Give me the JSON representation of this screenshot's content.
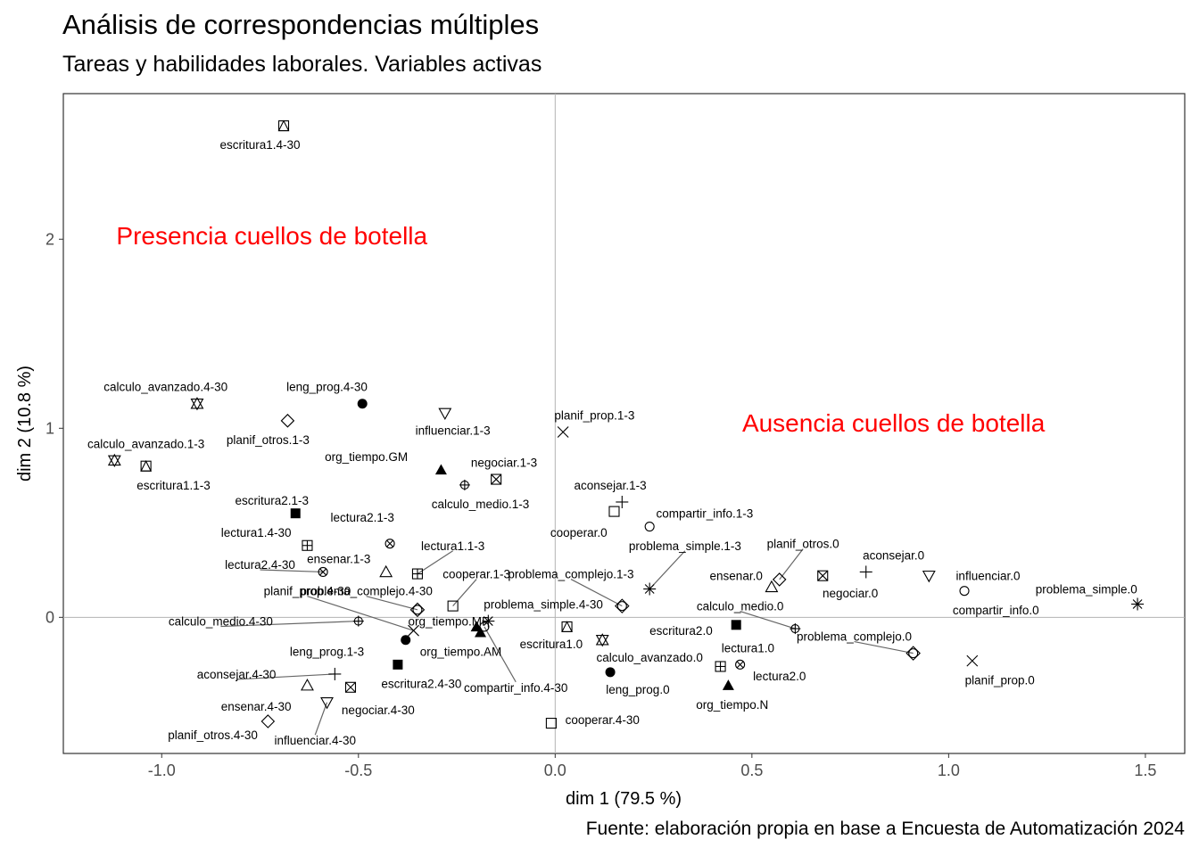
{
  "title": "Análisis de correspondencias múltiples",
  "subtitle": "Tareas y habilidades laborales. Variables activas",
  "caption": "Fuente: elaboración propia en base a Encuesta de Automatización 2024",
  "colors": {
    "annotation": "#ff0000",
    "refline": "#b3b3b3",
    "leader": "#666666",
    "panel_border": "#333333"
  },
  "chart_data": {
    "type": "scatter",
    "title": "Análisis de correspondencias múltiples",
    "subtitle": "Tareas y habilidades laborales. Variables activas",
    "xlabel": "dim 1 (79.5 %)",
    "ylabel": "dim 2 (10.8 %)",
    "xlim": [
      -1.25,
      1.6
    ],
    "ylim": [
      -0.72,
      2.77
    ],
    "xticks": [
      {
        "v": -1.0,
        "label": "-1.0"
      },
      {
        "v": -0.5,
        "label": "-0.5"
      },
      {
        "v": 0.0,
        "label": "0.0"
      },
      {
        "v": 0.5,
        "label": "0.5"
      },
      {
        "v": 1.0,
        "label": "1.0"
      },
      {
        "v": 1.5,
        "label": "1.5"
      }
    ],
    "yticks": [
      {
        "v": 0,
        "label": "0"
      },
      {
        "v": 1,
        "label": "1"
      },
      {
        "v": 2,
        "label": "2"
      }
    ],
    "grid": false,
    "reference_lines": {
      "x": 0,
      "y": 0
    },
    "annotations": [
      {
        "text": "Presencia cuellos de botella",
        "x": -0.72,
        "y": 2.02
      },
      {
        "text": "Ausencia cuellos de botella",
        "x": 0.86,
        "y": 1.03
      }
    ],
    "points": [
      {
        "label": "escritura1.4-30",
        "x": -0.69,
        "y": 2.6,
        "shape": "square-triangle",
        "lx": -0.75,
        "ly": 2.5
      },
      {
        "label": "calculo_avanzado.4-30",
        "x": -0.91,
        "y": 1.13,
        "shape": "star-david",
        "lx": -0.99,
        "ly": 1.22
      },
      {
        "label": "calculo_avanzado.1-3",
        "x": -1.12,
        "y": 0.83,
        "shape": "star-david",
        "lx": -1.04,
        "ly": 0.92
      },
      {
        "label": "escritura1.1-3",
        "x": -1.04,
        "y": 0.8,
        "shape": "square-triangle",
        "lx": -0.97,
        "ly": 0.7
      },
      {
        "label": "planif_otros.1-3",
        "x": -0.68,
        "y": 1.04,
        "shape": "diamond",
        "lx": -0.73,
        "ly": 0.94
      },
      {
        "label": "leng_prog.4-30",
        "x": -0.49,
        "y": 1.13,
        "shape": "filled-circle",
        "lx": -0.58,
        "ly": 1.22
      },
      {
        "label": "influenciar.1-3",
        "x": -0.28,
        "y": 1.08,
        "shape": "triangle-down",
        "lx": -0.26,
        "ly": 0.99
      },
      {
        "label": "planif_prop.1-3",
        "x": 0.02,
        "y": 0.98,
        "shape": "cross-x",
        "lx": 0.1,
        "ly": 1.07
      },
      {
        "label": "org_tiempo.GM",
        "x": -0.29,
        "y": 0.78,
        "shape": "filled-triangle",
        "lx": -0.48,
        "ly": 0.85
      },
      {
        "label": "negociar.1-3",
        "x": -0.15,
        "y": 0.73,
        "shape": "square-x",
        "lx": -0.13,
        "ly": 0.82
      },
      {
        "label": "calculo_medio.1-3",
        "x": -0.23,
        "y": 0.7,
        "shape": "circle-plus",
        "lx": -0.19,
        "ly": 0.6
      },
      {
        "label": "aconsejar.1-3",
        "x": 0.17,
        "y": 0.61,
        "shape": "plus",
        "lx": 0.14,
        "ly": 0.7
      },
      {
        "label": "cooperar.0",
        "x": 0.15,
        "y": 0.56,
        "shape": "square",
        "lx": 0.06,
        "ly": 0.45
      },
      {
        "label": "compartir_info.1-3",
        "x": 0.24,
        "y": 0.48,
        "shape": "circle",
        "lx": 0.38,
        "ly": 0.55
      },
      {
        "label": "escritura2.1-3",
        "x": -0.66,
        "y": 0.55,
        "shape": "filled-square",
        "lx": -0.72,
        "ly": 0.62
      },
      {
        "label": "lectura2.1-3",
        "x": -0.42,
        "y": 0.39,
        "shape": "circle-x",
        "lx": -0.49,
        "ly": 0.53
      },
      {
        "label": "lectura1.4-30",
        "x": -0.63,
        "y": 0.38,
        "shape": "square-plus",
        "lx": -0.76,
        "ly": 0.45
      },
      {
        "label": "lectura1.1-3",
        "x": -0.35,
        "y": 0.23,
        "shape": "square-plus",
        "lx": -0.26,
        "ly": 0.38,
        "leader": true
      },
      {
        "label": "lectura2.4-30",
        "x": -0.59,
        "y": 0.24,
        "shape": "circle-x",
        "lx": -0.75,
        "ly": 0.28,
        "leader": true
      },
      {
        "label": "ensenar.1-3",
        "x": -0.43,
        "y": 0.24,
        "shape": "triangle",
        "lx": -0.55,
        "ly": 0.31
      },
      {
        "label": "cooperar.1-3",
        "x": -0.26,
        "y": 0.06,
        "shape": "square",
        "lx": -0.2,
        "ly": 0.23,
        "leader": true
      },
      {
        "label": "problema_complejo.1-3",
        "x": 0.17,
        "y": 0.06,
        "shape": "circle-diamond",
        "lx": 0.04,
        "ly": 0.23,
        "leader": true
      },
      {
        "label": "problema_simple.1-3",
        "x": 0.24,
        "y": 0.15,
        "shape": "asterisk",
        "lx": 0.33,
        "ly": 0.38,
        "leader": true
      },
      {
        "label": "planif_prop.4-30",
        "x": -0.36,
        "y": -0.07,
        "shape": "cross-x",
        "lx": -0.63,
        "ly": 0.14,
        "leader": true
      },
      {
        "label": "problema_complejo.4-30",
        "x": -0.35,
        "y": 0.04,
        "shape": "circle-diamond",
        "lx": -0.48,
        "ly": 0.14,
        "leader": true
      },
      {
        "label": "problema_simple.4-30",
        "x": -0.17,
        "y": -0.02,
        "shape": "asterisk",
        "lx": -0.03,
        "ly": 0.07
      },
      {
        "label": "org_tiempo.MP",
        "x": -0.2,
        "y": -0.05,
        "shape": "filled-triangle",
        "lx": -0.27,
        "ly": -0.02
      },
      {
        "label": "calculo_medio.4-30",
        "x": -0.5,
        "y": -0.02,
        "shape": "circle-plus",
        "lx": -0.85,
        "ly": -0.02,
        "leader": true
      },
      {
        "label": "org_tiempo.AM",
        "x": -0.19,
        "y": -0.08,
        "shape": "filled-triangle",
        "lx": -0.24,
        "ly": -0.18
      },
      {
        "label": "leng_prog.1-3",
        "x": -0.38,
        "y": -0.12,
        "shape": "filled-circle",
        "lx": -0.58,
        "ly": -0.18
      },
      {
        "label": "escritura2.4-30",
        "x": -0.4,
        "y": -0.25,
        "shape": "filled-square",
        "lx": -0.34,
        "ly": -0.35
      },
      {
        "label": "compartir_info.4-30",
        "x": -0.18,
        "y": -0.05,
        "shape": "circle",
        "lx": -0.1,
        "ly": -0.37,
        "leader": true
      },
      {
        "label": "aconsejar.4-30",
        "x": -0.56,
        "y": -0.3,
        "shape": "plus",
        "lx": -0.81,
        "ly": -0.3,
        "leader": true
      },
      {
        "label": "ensenar.4-30",
        "x": -0.63,
        "y": -0.36,
        "shape": "triangle",
        "lx": -0.76,
        "ly": -0.47
      },
      {
        "label": "negociar.4-30",
        "x": -0.52,
        "y": -0.37,
        "shape": "square-x",
        "lx": -0.45,
        "ly": -0.49
      },
      {
        "label": "influenciar.4-30",
        "x": -0.58,
        "y": -0.45,
        "shape": "triangle-down",
        "lx": -0.61,
        "ly": -0.65,
        "leader": true
      },
      {
        "label": "planif_otros.4-30",
        "x": -0.73,
        "y": -0.55,
        "shape": "diamond",
        "lx": -0.87,
        "ly": -0.62
      },
      {
        "label": "escritura1.0",
        "x": 0.03,
        "y": -0.05,
        "shape": "square-triangle",
        "lx": -0.01,
        "ly": -0.14
      },
      {
        "label": "calculo_avanzado.0",
        "x": 0.12,
        "y": -0.12,
        "shape": "star-david",
        "lx": 0.24,
        "ly": -0.21
      },
      {
        "label": "cooperar.4-30",
        "x": -0.01,
        "y": -0.56,
        "shape": "square",
        "lx": 0.12,
        "ly": -0.54
      },
      {
        "label": "leng_prog.0",
        "x": 0.14,
        "y": -0.29,
        "shape": "filled-circle",
        "lx": 0.21,
        "ly": -0.38
      },
      {
        "label": "escritura2.0",
        "x": 0.46,
        "y": -0.04,
        "shape": "filled-square",
        "lx": 0.32,
        "ly": -0.07
      },
      {
        "label": "calculo_medio.0",
        "x": 0.61,
        "y": -0.06,
        "shape": "circle-plus",
        "lx": 0.47,
        "ly": 0.06,
        "leader": true
      },
      {
        "label": "lectura1.0",
        "x": 0.42,
        "y": -0.26,
        "shape": "square-plus",
        "lx": 0.49,
        "ly": -0.16
      },
      {
        "label": "lectura2.0",
        "x": 0.47,
        "y": -0.25,
        "shape": "circle-x",
        "lx": 0.57,
        "ly": -0.31
      },
      {
        "label": "org_tiempo.N",
        "x": 0.44,
        "y": -0.36,
        "shape": "filled-triangle",
        "lx": 0.45,
        "ly": -0.46
      },
      {
        "label": "ensenar.0",
        "x": 0.55,
        "y": 0.16,
        "shape": "triangle",
        "lx": 0.46,
        "ly": 0.22
      },
      {
        "label": "planif_otros.0",
        "x": 0.57,
        "y": 0.2,
        "shape": "diamond",
        "lx": 0.63,
        "ly": 0.39,
        "leader": true
      },
      {
        "label": "negociar.0",
        "x": 0.68,
        "y": 0.22,
        "shape": "square-x",
        "lx": 0.75,
        "ly": 0.13
      },
      {
        "label": "aconsejar.0",
        "x": 0.79,
        "y": 0.24,
        "shape": "plus",
        "lx": 0.86,
        "ly": 0.33
      },
      {
        "label": "influenciar.0",
        "x": 0.95,
        "y": 0.22,
        "shape": "triangle-down",
        "lx": 1.1,
        "ly": 0.22
      },
      {
        "label": "compartir_info.0",
        "x": 1.04,
        "y": 0.14,
        "shape": "circle",
        "lx": 1.12,
        "ly": 0.04
      },
      {
        "label": "problema_complejo.0",
        "x": 0.91,
        "y": -0.19,
        "shape": "circle-diamond",
        "lx": 0.76,
        "ly": -0.1,
        "leader": true
      },
      {
        "label": "planif_prop.0",
        "x": 1.06,
        "y": -0.23,
        "shape": "cross-x",
        "lx": 1.13,
        "ly": -0.33
      },
      {
        "label": "problema_simple.0",
        "x": 1.48,
        "y": 0.07,
        "shape": "asterisk",
        "lx": 1.35,
        "ly": 0.15
      }
    ]
  }
}
